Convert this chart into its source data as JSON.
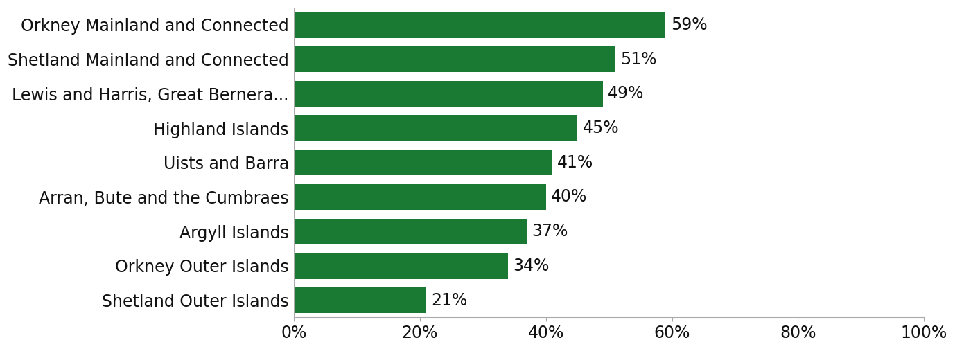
{
  "categories": [
    "Shetland Outer Islands",
    "Orkney Outer Islands",
    "Argyll Islands",
    "Arran, Bute and the Cumbraes",
    "Uists and Barra",
    "Highland Islands",
    "Lewis and Harris, Great Bernera...",
    "Shetland Mainland and Connected",
    "Orkney Mainland and Connected"
  ],
  "values": [
    21,
    34,
    37,
    40,
    41,
    45,
    49,
    51,
    59
  ],
  "bar_color": "#1a7a34",
  "label_color": "#111111",
  "background_color": "#ffffff",
  "xlim": [
    0,
    100
  ],
  "xticks": [
    0,
    20,
    40,
    60,
    80,
    100
  ],
  "xtick_labels": [
    "0%",
    "20%",
    "40%",
    "60%",
    "80%",
    "100%"
  ],
  "bar_height": 0.75,
  "label_fontsize": 17,
  "tick_fontsize": 17,
  "value_label_fontsize": 17
}
